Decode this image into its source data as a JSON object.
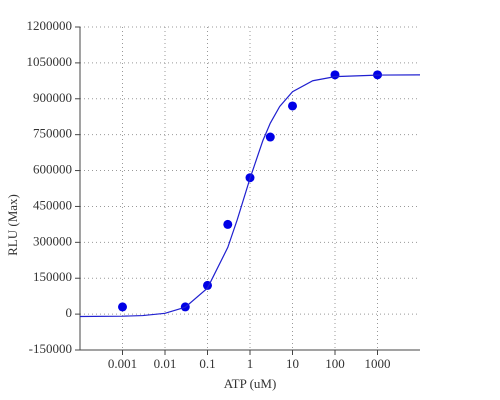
{
  "chart_data": {
    "type": "scatter",
    "x_label": "ATP (uM)",
    "y_label": "RLU (Max)",
    "xscale": "log",
    "xlim": [
      0.0001,
      10000
    ],
    "xticks": [
      0.001,
      0.01,
      0.1,
      1,
      10,
      100,
      1000
    ],
    "ylim": [
      -150000,
      1200000
    ],
    "yticks": [
      -150000,
      0,
      150000,
      300000,
      450000,
      600000,
      750000,
      900000,
      1050000,
      1200000
    ],
    "grid": true,
    "series": [
      {
        "kind": "points",
        "color": "#0000e6",
        "x": [
          0.001,
          0.03,
          0.1,
          0.3,
          1,
          3,
          10,
          100,
          1000
        ],
        "values": [
          30000,
          30000,
          120000,
          375000,
          570000,
          740000,
          870000,
          1000000,
          1000000
        ]
      },
      {
        "kind": "line",
        "color": "#2020d0",
        "x": [
          0.0001,
          0.001,
          0.003,
          0.01,
          0.03,
          0.1,
          0.3,
          0.5,
          1,
          2,
          3,
          5,
          10,
          30,
          100,
          1000,
          10000
        ],
        "values": [
          -9900,
          -8700,
          -6000,
          3300,
          28800,
          108800,
          278600,
          394000,
          567100,
          724500,
          798000,
          868000,
          929500,
          975400,
          992500,
          999000,
          999900
        ]
      }
    ]
  }
}
